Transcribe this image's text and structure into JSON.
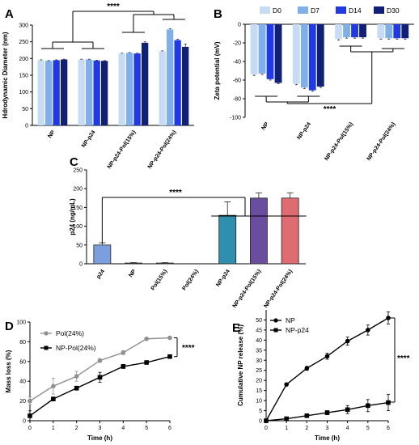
{
  "chart_data": [
    {
      "panel": "A",
      "type": "bar",
      "ylabel": "Hdrodynamic Diameter (nm)",
      "ylim": [
        0,
        300
      ],
      "yticks": [
        0,
        50,
        100,
        150,
        200,
        250,
        300
      ],
      "categories": [
        "NP",
        "NP-p24",
        "NP-p24-Pol(15%)",
        "NP-p24-Pol(24%)"
      ],
      "series": [
        {
          "name": "D0",
          "color": "#c6dcf4",
          "values": [
            195,
            197,
            215,
            222
          ],
          "errors": [
            1,
            1,
            1,
            1
          ]
        },
        {
          "name": "D7",
          "color": "#7fb0ea",
          "values": [
            193,
            197,
            217,
            287
          ],
          "errors": [
            1,
            1,
            1,
            2
          ]
        },
        {
          "name": "D14",
          "color": "#1f39e6",
          "values": [
            195,
            194,
            215,
            255
          ],
          "errors": [
            1,
            1,
            1,
            3
          ]
        },
        {
          "name": "D30",
          "color": "#0f1f7a",
          "values": [
            197,
            193,
            247,
            235
          ],
          "errors": [
            1,
            1,
            3,
            8
          ]
        }
      ],
      "significance": "****"
    },
    {
      "panel": "B",
      "type": "bar",
      "ylabel": "Zeta potential (mV)",
      "ylim": [
        -100,
        0
      ],
      "yticks": [
        0,
        -20,
        -40,
        -60,
        -80,
        -100
      ],
      "categories": [
        "NP",
        "NP-p24",
        "NP-p24-Pol(15%)",
        "NP-p24-Pol(24%)"
      ],
      "legend": [
        "D0",
        "D7",
        "D14",
        "D30"
      ],
      "series": [
        {
          "name": "D0",
          "color": "#c6dcf4",
          "values": [
            -54,
            -64,
            -16,
            -15
          ],
          "errors": [
            1,
            1,
            1,
            1
          ]
        },
        {
          "name": "D7",
          "color": "#7fb0ea",
          "values": [
            -53,
            -68,
            -14,
            -15
          ],
          "errors": [
            1,
            1,
            1,
            1
          ]
        },
        {
          "name": "D14",
          "color": "#1f39e6",
          "values": [
            -59,
            -71,
            -14,
            -15
          ],
          "errors": [
            1,
            1,
            1,
            1
          ]
        },
        {
          "name": "D30",
          "color": "#0f1f7a",
          "values": [
            -63,
            -67,
            -14,
            -15
          ],
          "errors": [
            1,
            1,
            1,
            1
          ]
        }
      ],
      "significance": "****"
    },
    {
      "panel": "C",
      "type": "bar",
      "ylabel": "p24 (ng/mL)",
      "ylim": [
        0,
        250
      ],
      "yticks": [
        0,
        50,
        100,
        150,
        200,
        250
      ],
      "categories": [
        "p24",
        "NP",
        "Pol(15%)",
        "Pol(24%)",
        "NP-p24",
        "NP-p24-Pol(15%)",
        "NP-p24-Pol(24%)"
      ],
      "values": [
        50,
        2,
        2,
        0,
        129,
        175,
        175
      ],
      "errors": [
        6,
        1,
        1,
        0,
        36,
        14,
        14
      ],
      "colors": [
        "#7b9ede",
        "#6a4fa3",
        "#e0608c",
        "#d46161",
        "#2f8fae",
        "#6a4d9e",
        "#e06b70"
      ],
      "significance": "****"
    },
    {
      "panel": "D",
      "type": "line",
      "xlabel": "Time (h)",
      "ylabel": "Mass loss (%)",
      "xlim": [
        0,
        6
      ],
      "ylim": [
        0,
        100
      ],
      "xticks": [
        0,
        1,
        2,
        3,
        4,
        5,
        6
      ],
      "yticks": [
        0,
        20,
        40,
        60,
        80,
        100
      ],
      "series": [
        {
          "name": "Pol(24%)",
          "color": "#909090",
          "marker": "circle",
          "x": [
            0,
            1,
            2,
            3,
            4,
            5,
            6
          ],
          "y": [
            20,
            35,
            45,
            61,
            69,
            83,
            84
          ],
          "errors": [
            4,
            8,
            5,
            2,
            2,
            1,
            1
          ]
        },
        {
          "name": "NP-Pol(24%)",
          "color": "#000000",
          "marker": "square",
          "x": [
            0,
            1,
            2,
            3,
            4,
            5,
            6
          ],
          "y": [
            5,
            22,
            33,
            44,
            55,
            59,
            65
          ],
          "errors": [
            5,
            2,
            2,
            5,
            2,
            1,
            1
          ]
        }
      ],
      "significance": "****"
    },
    {
      "panel": "E",
      "type": "line",
      "xlabel": "Time (h)",
      "ylabel": "Cumulative NP release (%)",
      "xlim": [
        0,
        6
      ],
      "ylim": [
        0,
        55
      ],
      "xticks": [
        0,
        1,
        2,
        3,
        4,
        5,
        6
      ],
      "yticks": [
        0,
        5,
        10,
        15,
        20,
        25,
        30,
        35,
        40,
        45,
        50
      ],
      "series": [
        {
          "name": "NP",
          "color": "#000000",
          "marker": "circle",
          "x": [
            0,
            1,
            2,
            3,
            4,
            5,
            6
          ],
          "y": [
            0,
            18,
            26,
            32,
            39.5,
            45,
            51
          ],
          "errors": [
            0,
            0.5,
            1,
            1.5,
            2,
            2.5,
            3
          ]
        },
        {
          "name": "NP-p24",
          "color": "#000000",
          "marker": "square",
          "x": [
            0,
            1,
            2,
            3,
            4,
            5,
            6
          ],
          "y": [
            0,
            1,
            2.5,
            4,
            5.5,
            7.5,
            9
          ],
          "errors": [
            0,
            0.5,
            0.5,
            1,
            2,
            3,
            4
          ]
        }
      ],
      "significance": "****"
    }
  ]
}
